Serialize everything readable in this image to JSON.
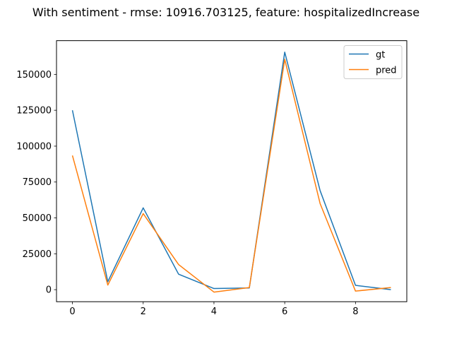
{
  "chart_data": {
    "type": "line",
    "title": "With sentiment - rmse: 10916.703125, feature: hospitalizedIncrease",
    "xlabel": "",
    "ylabel": "",
    "xlim": [
      -0.45,
      9.45
    ],
    "ylim": [
      -8400,
      173500
    ],
    "xticks": [
      0,
      2,
      4,
      6,
      8
    ],
    "yticks": [
      0,
      25000,
      50000,
      75000,
      100000,
      125000,
      150000
    ],
    "legend_position": "top-right",
    "grid": false,
    "x": [
      0,
      1,
      2,
      3,
      4,
      5,
      6,
      7,
      8,
      9
    ],
    "series": [
      {
        "name": "gt",
        "color": "#1f77b4",
        "values": [
          125000,
          5500,
          57000,
          10800,
          800,
          1200,
          165500,
          69000,
          3000,
          0
        ]
      },
      {
        "name": "pred",
        "color": "#ff7f0e",
        "values": [
          93500,
          3200,
          53000,
          17500,
          -1700,
          1500,
          160500,
          60000,
          -1000,
          1500
        ]
      }
    ]
  }
}
